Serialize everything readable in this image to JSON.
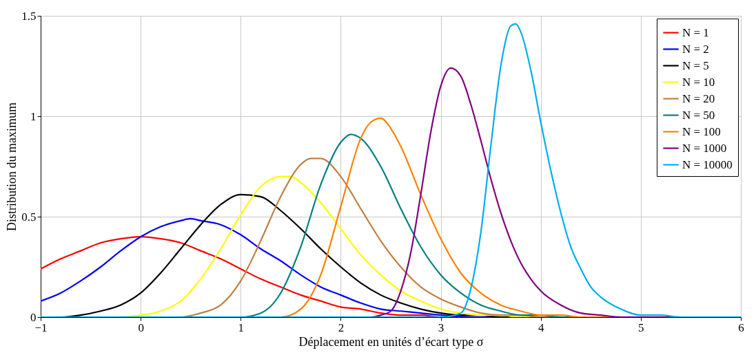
{
  "chart_data": {
    "type": "line",
    "xlabel": "Déplacement en unités d’écart type σ",
    "ylabel": "Distribution du maximum",
    "xlim": [
      -1,
      6
    ],
    "ylim": [
      0,
      1.5
    ],
    "xticks": [
      {
        "value": -1,
        "label": "−1"
      },
      0,
      1,
      2,
      3,
      4,
      5,
      6
    ],
    "yticks": [
      0,
      0.5,
      1,
      1.5
    ],
    "grid": true,
    "legend": "top right",
    "marker": "none",
    "line_style": "solid",
    "series": [
      {
        "name": "N = 1",
        "color": "#ff0000",
        "x": [
          -1,
          -0.8,
          -0.6,
          -0.4,
          -0.2,
          0,
          0.2,
          0.4,
          0.6,
          0.8,
          1,
          1.2,
          1.4,
          1.6,
          1.8,
          2,
          2.2,
          2.4,
          2.6,
          2.8,
          3,
          3.4,
          6
        ],
        "values": [
          0.24,
          0.29,
          0.33,
          0.37,
          0.39,
          0.4,
          0.39,
          0.37,
          0.33,
          0.29,
          0.24,
          0.19,
          0.15,
          0.11,
          0.08,
          0.05,
          0.04,
          0.02,
          0.01,
          0.01,
          0,
          0,
          0
        ]
      },
      {
        "name": "N = 2",
        "color": "#0000ff",
        "x": [
          -1,
          -0.8,
          -0.6,
          -0.4,
          -0.2,
          0,
          0.2,
          0.4,
          0.5,
          0.6,
          0.8,
          1,
          1.2,
          1.4,
          1.6,
          1.8,
          2,
          2.2,
          2.4,
          2.6,
          2.8,
          3,
          3.4,
          6
        ],
        "values": [
          0.08,
          0.12,
          0.18,
          0.25,
          0.33,
          0.4,
          0.45,
          0.48,
          0.49,
          0.48,
          0.46,
          0.41,
          0.34,
          0.28,
          0.21,
          0.15,
          0.11,
          0.07,
          0.04,
          0.03,
          0.02,
          0.01,
          0,
          0
        ]
      },
      {
        "name": "N = 5",
        "color": "#000000",
        "x": [
          -1,
          -0.8,
          -0.6,
          -0.4,
          -0.2,
          0,
          0.2,
          0.4,
          0.6,
          0.8,
          1,
          1.2,
          1.4,
          1.6,
          1.8,
          2,
          2.2,
          2.4,
          2.6,
          2.8,
          3,
          3.2,
          3.4,
          3.6,
          6
        ],
        "values": [
          0,
          0,
          0.01,
          0.03,
          0.06,
          0.12,
          0.22,
          0.34,
          0.46,
          0.56,
          0.61,
          0.6,
          0.53,
          0.44,
          0.34,
          0.25,
          0.17,
          0.11,
          0.07,
          0.04,
          0.02,
          0.01,
          0.01,
          0,
          0
        ]
      },
      {
        "name": "N = 10",
        "color": "#ffff00",
        "x": [
          -1,
          -0.2,
          0,
          0.2,
          0.4,
          0.6,
          0.8,
          1,
          1.2,
          1.4,
          1.5,
          1.6,
          1.8,
          2,
          2.2,
          2.4,
          2.6,
          2.8,
          3,
          3.2,
          3.4,
          3.6,
          3.8,
          6
        ],
        "values": [
          0,
          0,
          0.01,
          0.03,
          0.08,
          0.19,
          0.34,
          0.51,
          0.65,
          0.7,
          0.7,
          0.67,
          0.57,
          0.44,
          0.31,
          0.21,
          0.13,
          0.08,
          0.04,
          0.02,
          0.01,
          0.01,
          0,
          0
        ]
      },
      {
        "name": "N = 20",
        "color": "#bf8040",
        "x": [
          -1,
          0.4,
          0.6,
          0.8,
          1,
          1.2,
          1.4,
          1.6,
          1.7,
          1.8,
          2,
          2.2,
          2.4,
          2.6,
          2.8,
          3,
          3.2,
          3.4,
          3.6,
          3.8,
          4,
          6
        ],
        "values": [
          0,
          0,
          0.02,
          0.06,
          0.18,
          0.38,
          0.6,
          0.76,
          0.79,
          0.79,
          0.7,
          0.54,
          0.38,
          0.25,
          0.15,
          0.09,
          0.05,
          0.02,
          0.01,
          0.01,
          0,
          0
        ]
      },
      {
        "name": "N = 50",
        "color": "#008080",
        "x": [
          -1,
          1,
          1.2,
          1.4,
          1.6,
          1.8,
          2,
          2.1,
          2.2,
          2.4,
          2.6,
          2.8,
          3,
          3.2,
          3.4,
          3.6,
          3.8,
          4,
          4.2,
          6
        ],
        "values": [
          0,
          0,
          0.02,
          0.12,
          0.35,
          0.66,
          0.87,
          0.91,
          0.89,
          0.75,
          0.54,
          0.35,
          0.21,
          0.12,
          0.06,
          0.03,
          0.01,
          0.01,
          0,
          0
        ]
      },
      {
        "name": "N = 100",
        "color": "#ff8000",
        "x": [
          -1,
          1.4,
          1.6,
          1.8,
          2,
          2.2,
          2.3,
          2.4,
          2.5,
          2.6,
          2.8,
          3,
          3.2,
          3.4,
          3.6,
          3.8,
          4,
          4.2,
          4.4,
          6
        ],
        "values": [
          0,
          0,
          0.04,
          0.21,
          0.55,
          0.89,
          0.97,
          0.99,
          0.94,
          0.85,
          0.61,
          0.39,
          0.22,
          0.12,
          0.06,
          0.03,
          0.01,
          0.01,
          0,
          0
        ]
      },
      {
        "name": "N = 1000",
        "color": "#800080",
        "x": [
          -1,
          2.3,
          2.4,
          2.5,
          2.6,
          2.7,
          2.8,
          2.9,
          3,
          3.1,
          3.2,
          3.3,
          3.4,
          3.5,
          3.6,
          3.7,
          3.8,
          3.9,
          4,
          4.2,
          4.4,
          4.6,
          4.8,
          6
        ],
        "values": [
          0,
          0,
          0.01,
          0.03,
          0.13,
          0.32,
          0.61,
          0.92,
          1.15,
          1.24,
          1.2,
          1.06,
          0.88,
          0.69,
          0.52,
          0.38,
          0.27,
          0.19,
          0.13,
          0.06,
          0.02,
          0.01,
          0,
          0
        ]
      },
      {
        "name": "N = 10000",
        "color": "#00aeef",
        "x": [
          -1,
          3,
          3.2,
          3.3,
          3.4,
          3.5,
          3.6,
          3.7,
          3.75,
          3.8,
          3.9,
          4,
          4.1,
          4.2,
          4.3,
          4.4,
          4.5,
          4.6,
          4.8,
          5,
          5.2,
          5.4,
          6
        ],
        "values": [
          0,
          0,
          0.02,
          0.14,
          0.42,
          0.85,
          1.25,
          1.45,
          1.46,
          1.42,
          1.23,
          0.97,
          0.73,
          0.52,
          0.35,
          0.24,
          0.15,
          0.1,
          0.04,
          0.01,
          0.01,
          0,
          0
        ]
      }
    ]
  }
}
